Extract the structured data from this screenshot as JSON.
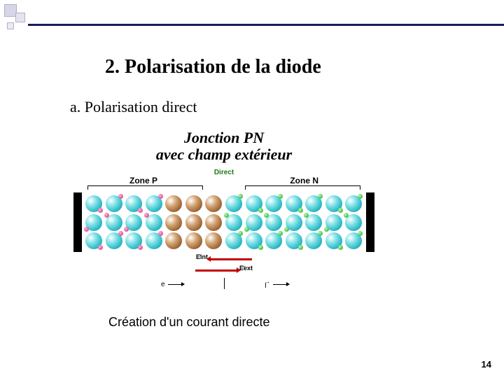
{
  "corner_color": "#d6d6e6",
  "line_color": "#1a1a5e",
  "heading": "2. Polarisation de la diode",
  "subheading": "a. Polarisation direct",
  "diagram": {
    "title_line1": "Jonction PN",
    "title_line2": "avec champ extérieur",
    "direct_label": "Direct",
    "zone_p_label": "Zone P",
    "zone_n_label": "Zone N",
    "atom_color_cyan": "#2bb8c4",
    "atom_color_brown": "#a06838",
    "hole_color": "#d4267d",
    "electron_color": "#1a9a1a",
    "rows": 3,
    "cols": 14,
    "brown_cols": [
      4,
      5,
      6
    ],
    "e_int_label": "Eint",
    "e_ext_label": "Eext",
    "e_int_color": "#c00000",
    "e_ext_color": "#c00000",
    "e_symbol": "e",
    "i_symbol": "I",
    "vec_arrow_over_i": "→"
  },
  "caption": "Création  d'un courant directe",
  "page_number": "14"
}
